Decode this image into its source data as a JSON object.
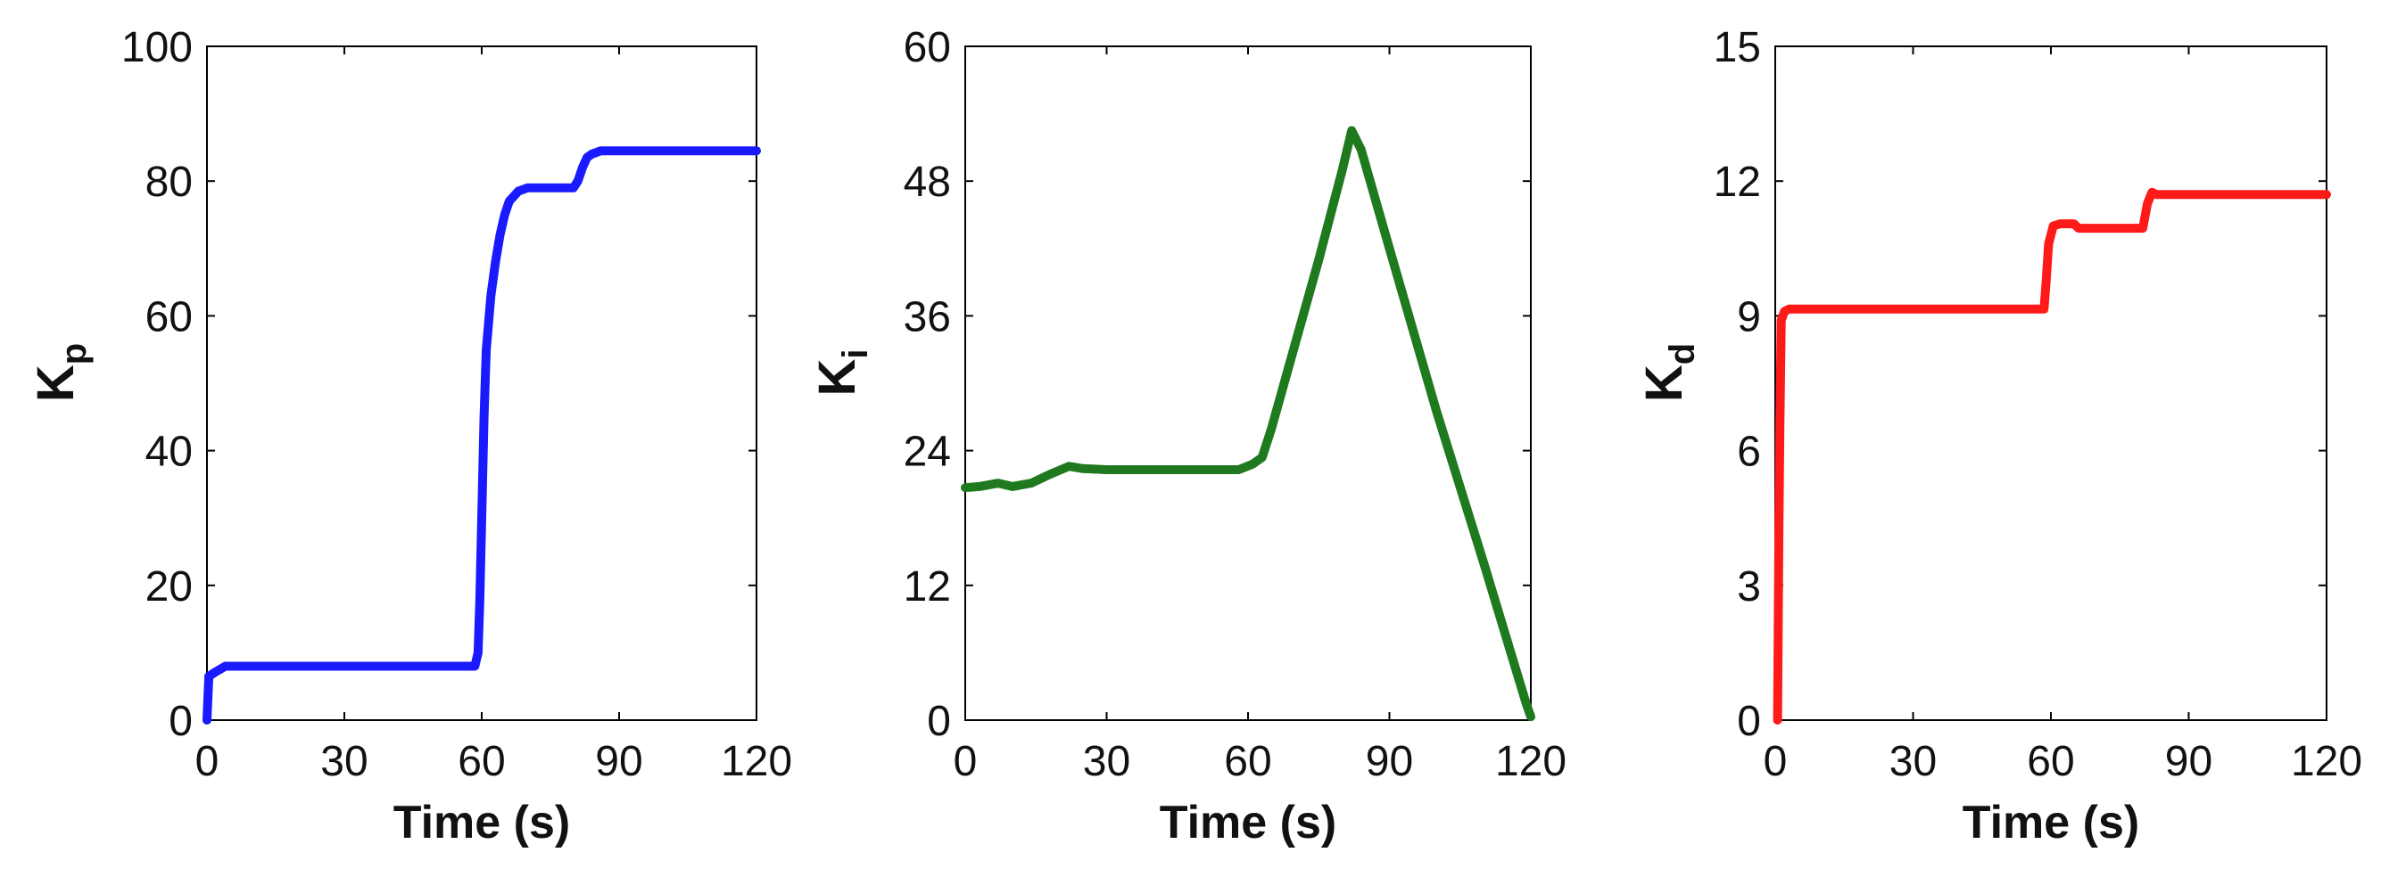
{
  "chart_data": [
    {
      "type": "line",
      "ylabel": "K",
      "ylabel_subscript": "p",
      "xlabel": "Time (s)",
      "xlim": [
        0,
        120
      ],
      "ylim": [
        0,
        100
      ],
      "xticks": [
        0,
        30,
        60,
        90,
        120
      ],
      "yticks": [
        0,
        20,
        40,
        60,
        80,
        100
      ],
      "grid": false,
      "series": [
        {
          "color": "#1a1aff",
          "x": [
            0,
            0.4,
            1.5,
            4,
            58.5,
            59.2,
            59.6,
            60.0,
            60.5,
            61,
            62,
            63,
            64,
            65,
            66,
            68,
            70,
            72,
            75,
            80,
            81,
            82,
            83,
            84,
            86,
            88,
            90,
            100,
            110,
            120
          ],
          "y": [
            0,
            6.5,
            7,
            8,
            8,
            10,
            18,
            30,
            45,
            55,
            63,
            68,
            72,
            75,
            77,
            78.5,
            79,
            79,
            79,
            79,
            80,
            82,
            83.5,
            84,
            84.5,
            84.5,
            84.5,
            84.5,
            84.5,
            84.5
          ]
        }
      ]
    },
    {
      "type": "line",
      "ylabel": "K",
      "ylabel_subscript": "i",
      "xlabel": "Time (s)",
      "xlim": [
        0,
        120
      ],
      "ylim": [
        0,
        60
      ],
      "xticks": [
        0,
        30,
        60,
        90,
        120
      ],
      "yticks": [
        0,
        12,
        24,
        36,
        48,
        60
      ],
      "grid": false,
      "series": [
        {
          "color": "#1f7a1f",
          "x": [
            0,
            3,
            7,
            10,
            14,
            18,
            22,
            25,
            30,
            40,
            50,
            58,
            61,
            63,
            65,
            70,
            75,
            80,
            82,
            84,
            90,
            100,
            110,
            119,
            120
          ],
          "y": [
            20.7,
            20.8,
            21.1,
            20.8,
            21.1,
            21.9,
            22.6,
            22.4,
            22.3,
            22.3,
            22.3,
            22.3,
            22.8,
            23.4,
            26,
            33.5,
            41,
            49,
            52.5,
            50.8,
            42,
            27.5,
            14,
            1.5,
            0.3
          ]
        }
      ]
    },
    {
      "type": "line",
      "ylabel": "K",
      "ylabel_subscript": "d",
      "xlabel": "Time (s)",
      "xlim": [
        0,
        120
      ],
      "ylim": [
        0,
        15
      ],
      "xticks": [
        0,
        30,
        60,
        90,
        120
      ],
      "yticks": [
        0,
        3,
        6,
        9,
        12,
        15
      ],
      "grid": false,
      "series": [
        {
          "color": "#ff1a1a",
          "x": [
            0.5,
            0.8,
            1.0,
            1.3,
            2,
            3,
            30,
            58.5,
            59,
            59.5,
            60.5,
            62,
            65,
            66,
            70,
            80,
            81,
            82,
            83,
            90,
            100,
            110,
            120
          ],
          "y": [
            0,
            4.2,
            6.5,
            8.9,
            9.1,
            9.15,
            9.15,
            9.15,
            9.8,
            10.6,
            11,
            11.05,
            11.05,
            10.95,
            10.95,
            10.95,
            11.5,
            11.75,
            11.7,
            11.7,
            11.7,
            11.7,
            11.7
          ]
        }
      ]
    }
  ]
}
